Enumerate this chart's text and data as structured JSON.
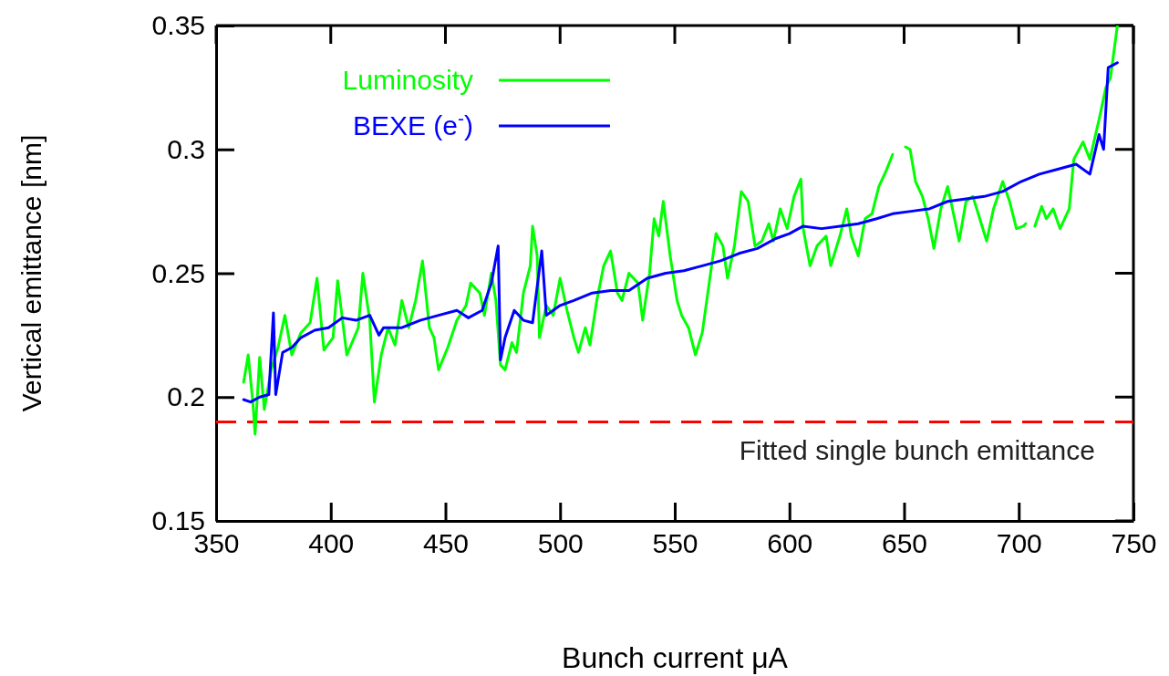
{
  "chart_data": {
    "type": "line",
    "xlabel": "Bunch current μA",
    "ylabel": "Vertical emittance [nm]",
    "xlim": [
      350,
      750
    ],
    "ylim": [
      0.15,
      0.35
    ],
    "xticks": [
      350,
      400,
      450,
      500,
      550,
      600,
      650,
      700,
      750
    ],
    "yticks": [
      0.15,
      0.2,
      0.25,
      0.3,
      0.35
    ],
    "grid": false,
    "legend": "top left",
    "line_style": "solid",
    "marker": "none",
    "ref_lines": [
      {
        "axis": "y",
        "value": 0.19,
        "label": "Fitted single bunch emittance",
        "color": "#ff0000",
        "line_style": "dashed"
      }
    ],
    "series": [
      {
        "name": "Luminosity",
        "color": "#00ff00",
        "x": [
          362,
          364,
          366,
          367,
          369,
          371,
          374,
          377,
          380,
          383,
          387,
          391,
          394,
          397,
          401,
          403,
          407,
          412,
          414,
          417,
          419,
          422,
          425,
          428,
          431,
          434,
          437,
          440,
          443,
          445,
          447,
          451,
          455,
          459,
          461,
          465,
          467,
          470,
          472,
          474,
          476,
          479,
          481,
          484,
          487,
          488,
          490,
          491,
          494,
          497,
          500,
          503,
          506,
          508,
          511,
          513,
          516,
          519,
          522,
          525,
          527,
          530,
          534,
          536,
          539,
          541,
          543,
          545,
          548,
          551,
          553,
          556,
          559,
          562,
          565,
          568,
          571,
          573,
          576,
          579,
          582,
          585,
          588,
          591,
          593,
          596,
          599,
          602,
          605,
          606,
          609,
          612,
          616,
          618,
          622,
          625,
          627,
          630,
          633,
          636,
          639,
          642,
          645,
          648,
          650.6,
          652.6,
          655,
          658,
          660.5,
          663,
          666,
          669,
          672,
          674,
          677,
          680,
          683,
          686,
          689,
          693,
          696,
          699,
          702,
          703,
          705,
          707,
          710,
          712,
          715,
          718,
          722,
          724,
          728,
          731,
          735,
          738,
          740,
          743
        ],
        "values": [
          0.206,
          0.217,
          0.198,
          0.185,
          0.216,
          0.195,
          0.211,
          0.22,
          0.233,
          0.217,
          0.226,
          0.23,
          0.248,
          0.219,
          0.224,
          0.247,
          0.217,
          0.228,
          0.25,
          0.231,
          0.198,
          0.217,
          0.228,
          0.221,
          0.239,
          0.228,
          0.239,
          0.255,
          0.228,
          0.224,
          0.211,
          0.22,
          0.231,
          0.237,
          0.246,
          0.242,
          0.233,
          0.25,
          0.239,
          0.213,
          0.211,
          0.222,
          0.218,
          0.242,
          0.253,
          0.269,
          0.257,
          0.224,
          0.237,
          0.233,
          0.248,
          0.235,
          0.224,
          0.218,
          0.228,
          0.221,
          0.239,
          0.253,
          0.259,
          0.242,
          0.239,
          0.25,
          0.246,
          0.231,
          0.25,
          0.272,
          0.265,
          0.279,
          0.257,
          0.239,
          0.233,
          0.228,
          0.217,
          0.226,
          0.246,
          0.266,
          0.261,
          0.248,
          0.261,
          0.283,
          0.279,
          0.261,
          0.263,
          0.27,
          0.263,
          0.276,
          0.268,
          0.281,
          0.288,
          0.268,
          0.253,
          0.261,
          0.265,
          0.253,
          0.265,
          0.276,
          0.265,
          0.257,
          0.272,
          0.274,
          0.285,
          0.291,
          0.298,
          null,
          0.301,
          0.3,
          0.287,
          0.281,
          0.272,
          0.26,
          0.276,
          0.285,
          0.272,
          0.263,
          0.279,
          0.281,
          0.272,
          0.263,
          0.276,
          0.287,
          0.279,
          0.268,
          0.269,
          0.27,
          null,
          0.269,
          0.277,
          0.272,
          0.276,
          0.268,
          0.276,
          0.296,
          0.303,
          0.296,
          0.312,
          0.325,
          0.329,
          0.35
        ]
      },
      {
        "name": "BEXE (e$^{-}$)",
        "color": "#0000ff",
        "x": [
          362,
          365,
          369,
          373,
          375,
          376,
          379,
          383,
          387,
          393,
          399,
          405,
          411,
          417,
          421,
          423,
          431,
          439,
          447,
          455,
          460,
          466,
          470,
          473,
          474,
          476,
          480,
          484,
          488,
          492,
          494,
          500,
          506,
          514,
          522,
          530,
          538,
          546,
          554,
          562,
          570,
          578,
          586,
          594,
          600,
          606,
          614,
          622,
          630,
          638,
          645,
          653,
          661,
          669,
          677,
          685,
          693,
          701,
          709,
          717,
          725,
          731,
          735,
          737,
          739,
          743
        ],
        "values": [
          0.199,
          0.198,
          0.2,
          0.201,
          0.234,
          0.201,
          0.218,
          0.22,
          0.224,
          0.227,
          0.228,
          0.232,
          0.231,
          0.233,
          0.225,
          0.228,
          0.228,
          0.231,
          0.233,
          0.235,
          0.232,
          0.235,
          0.246,
          0.261,
          0.215,
          0.224,
          0.235,
          0.231,
          0.23,
          0.259,
          0.233,
          0.237,
          0.239,
          0.242,
          0.243,
          0.243,
          0.248,
          0.25,
          0.251,
          0.253,
          0.255,
          0.258,
          0.26,
          0.264,
          0.266,
          0.269,
          0.268,
          0.269,
          0.27,
          0.272,
          0.274,
          0.275,
          0.276,
          0.279,
          0.28,
          0.281,
          0.283,
          0.287,
          0.29,
          0.292,
          0.294,
          0.29,
          0.306,
          0.3,
          0.333,
          0.335
        ]
      }
    ]
  }
}
